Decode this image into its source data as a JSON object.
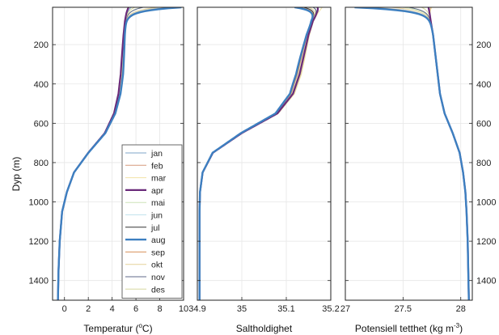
{
  "chart_data": {
    "type": "line",
    "y_label": "Dyp (m)",
    "y_range": [
      10,
      1500
    ],
    "y_ticks": [
      "200",
      "400",
      "600",
      "800",
      "1000",
      "1200",
      "1400"
    ],
    "y_tick_values": [
      200,
      400,
      600,
      800,
      1000,
      1200,
      1400
    ],
    "y_reversed": true,
    "grid": true,
    "legend_placement": "lower-right of first panel",
    "legend": [
      {
        "name": "jan",
        "color": "#7fa4c8",
        "width": 1
      },
      {
        "name": "feb",
        "color": "#d59a7c",
        "width": 1
      },
      {
        "name": "mar",
        "color": "#f2e2a6",
        "width": 1
      },
      {
        "name": "apr",
        "color": "#6a2a7a",
        "width": 2.2
      },
      {
        "name": "mai",
        "color": "#cde4b8",
        "width": 1
      },
      {
        "name": "jun",
        "color": "#c3e3ee",
        "width": 1
      },
      {
        "name": "jul",
        "color": "#333333",
        "width": 1
      },
      {
        "name": "aug",
        "color": "#3d7fc0",
        "width": 2.4
      },
      {
        "name": "sep",
        "color": "#d8905a",
        "width": 1
      },
      {
        "name": "okt",
        "color": "#e6d29a",
        "width": 1
      },
      {
        "name": "nov",
        "color": "#606a88",
        "width": 1
      },
      {
        "name": "des",
        "color": "#d7d8a0",
        "width": 1
      }
    ],
    "panels": [
      {
        "xlabel_main": "Temperatur (",
        "xlabel_sup": "o",
        "xlabel_end": "C)",
        "x_range": [
          -1,
          10
        ],
        "x_tick_values": [
          0,
          2,
          4,
          6,
          8,
          10
        ],
        "x_ticks": [
          "0",
          "2",
          "4",
          "6",
          "8",
          "10"
        ],
        "base_profile": {
          "depth": [
            10,
            40,
            80,
            150,
            250,
            350,
            450,
            550,
            650,
            750,
            850,
            950,
            1050,
            1200,
            1350,
            1500
          ],
          "value": [
            5.3,
            5.2,
            5.1,
            5.0,
            4.9,
            4.8,
            4.6,
            4.2,
            3.4,
            2.0,
            0.8,
            0.2,
            -0.2,
            -0.4,
            -0.5,
            -0.55
          ]
        },
        "month_surface": [
          5.6,
          5.4,
          5.3,
          5.4,
          6.5,
          8.4,
          9.6,
          9.8,
          9.0,
          7.8,
          6.6,
          5.9
        ],
        "month_offset": [
          0.05,
          0.02,
          0.0,
          -0.08,
          0.04,
          0.07,
          0.1,
          0.12,
          0.09,
          0.06,
          0.04,
          0.03
        ]
      },
      {
        "xlabel_main": "Saltholdighet",
        "xlabel_sup": "",
        "xlabel_end": "",
        "x_range": [
          34.9,
          35.2
        ],
        "x_tick_values": [
          34.9,
          35,
          35.1,
          35.2
        ],
        "x_ticks": [
          "34.9",
          "35",
          "35.1",
          "35.2"
        ],
        "base_profile": {
          "depth": [
            10,
            40,
            80,
            150,
            250,
            350,
            450,
            550,
            650,
            750,
            850,
            950,
            1050,
            1200,
            1350,
            1500
          ],
          "value": [
            35.18,
            35.17,
            35.16,
            35.15,
            35.14,
            35.13,
            35.115,
            35.08,
            35.0,
            34.935,
            34.912,
            34.906,
            34.905,
            34.905,
            34.905,
            34.905
          ]
        },
        "month_surface": [
          35.16,
          35.17,
          35.18,
          35.17,
          35.16,
          35.15,
          35.14,
          35.12,
          35.13,
          35.15,
          35.16,
          35.17
        ],
        "month_offset": [
          0.003,
          0.002,
          0.004,
          0.0,
          -0.002,
          -0.004,
          -0.006,
          -0.008,
          -0.005,
          -0.002,
          0.001,
          0.002
        ]
      },
      {
        "xlabel_main": "Potensiell tetthet (kg m",
        "xlabel_sup": "-3",
        "xlabel_end": ")",
        "x_range": [
          27,
          28.1
        ],
        "x_tick_values": [
          27,
          27.5,
          28
        ],
        "x_ticks": [
          "27",
          "27.5",
          "28"
        ],
        "base_profile": {
          "depth": [
            10,
            40,
            80,
            150,
            250,
            350,
            450,
            550,
            650,
            750,
            850,
            950,
            1050,
            1200,
            1350,
            1500
          ],
          "value": [
            27.72,
            27.73,
            27.74,
            27.76,
            27.78,
            27.8,
            27.82,
            27.86,
            27.93,
            27.99,
            28.02,
            28.04,
            28.05,
            28.06,
            28.065,
            28.07
          ]
        },
        "month_surface": [
          27.72,
          27.74,
          27.75,
          27.72,
          27.5,
          27.25,
          27.12,
          27.08,
          27.2,
          27.4,
          27.55,
          27.66
        ],
        "month_offset": [
          0.0,
          0.0,
          0.0,
          0.0,
          0.0,
          0.0,
          0.0,
          0.0,
          0.0,
          0.0,
          0.0,
          0.0
        ]
      }
    ]
  }
}
